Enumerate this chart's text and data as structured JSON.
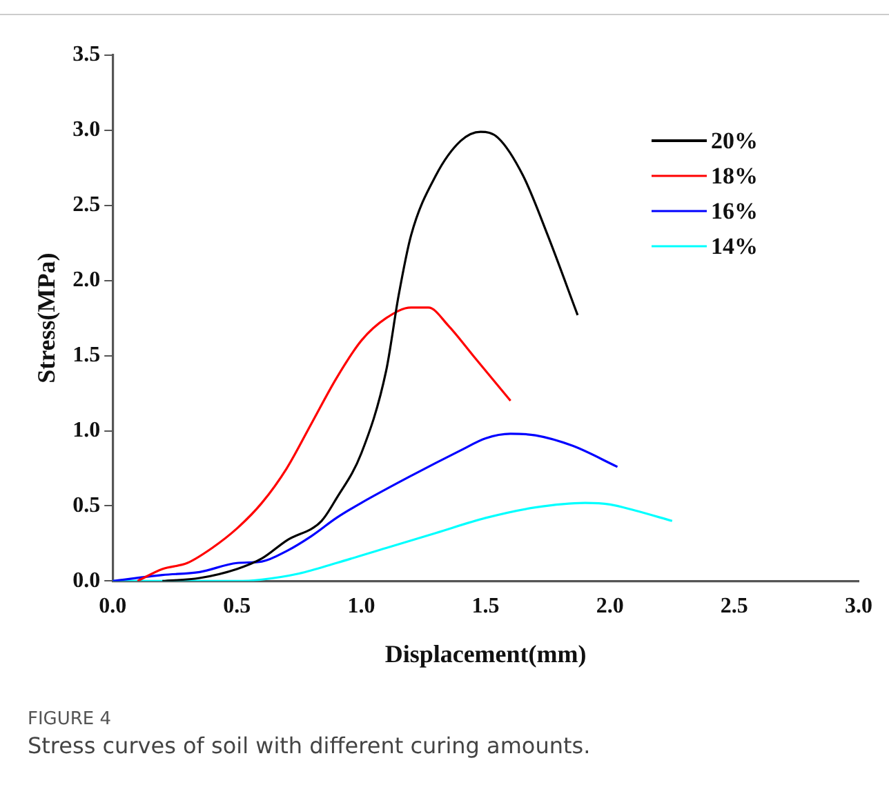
{
  "chart_data": {
    "type": "line",
    "xlabel": "Displacement(mm)",
    "ylabel": "Stress(MPa)",
    "xlim": [
      0,
      3
    ],
    "xticks": [
      {
        "value": 0,
        "label": "0.0"
      },
      {
        "value": 0.5,
        "label": "0.5"
      },
      {
        "value": 1,
        "label": "1.0"
      },
      {
        "value": 1.5,
        "label": "1.5"
      },
      {
        "value": 2,
        "label": "2.0"
      },
      {
        "value": 2.5,
        "label": "2.5"
      },
      {
        "value": 3,
        "label": "3.0"
      }
    ],
    "ylim": [
      0,
      3.5
    ],
    "yticks": [
      {
        "value": 0,
        "label": "0.0"
      },
      {
        "value": 0.5,
        "label": "0.5"
      },
      {
        "value": 1,
        "label": "1.0"
      },
      {
        "value": 1.5,
        "label": "1.5"
      },
      {
        "value": 2,
        "label": "2.0"
      },
      {
        "value": 2.5,
        "label": "2.5"
      },
      {
        "value": 3,
        "label": "3.0"
      },
      {
        "value": 3.5,
        "label": "3.5"
      }
    ],
    "grid": false,
    "legend": "top right",
    "marker": "none",
    "line_style": "solid",
    "annotations": [
      "FIGURE 4",
      "Stress curves of soil with different curing amounts."
    ],
    "series": [
      {
        "name": "20%",
        "color": "#000000",
        "x": [
          0.2,
          0.35,
          0.5,
          0.6,
          0.7,
          0.84,
          0.9,
          1.0,
          1.1,
          1.15,
          1.2,
          1.3,
          1.4,
          1.48,
          1.55,
          1.65,
          1.75,
          1.87
        ],
        "values": [
          0,
          0.02,
          0.08,
          0.15,
          0.27,
          0.4,
          0.55,
          0.85,
          1.4,
          1.9,
          2.3,
          2.7,
          2.93,
          2.99,
          2.95,
          2.7,
          2.3,
          1.77
        ]
      },
      {
        "name": "18%",
        "color": "#ff0000",
        "x": [
          0.1,
          0.2,
          0.3,
          0.4,
          0.5,
          0.6,
          0.7,
          0.8,
          0.9,
          1.0,
          1.1,
          1.2,
          1.27,
          1.35,
          1.45,
          1.6
        ],
        "values": [
          0,
          0.08,
          0.12,
          0.22,
          0.35,
          0.52,
          0.75,
          1.05,
          1.35,
          1.6,
          1.75,
          1.82,
          1.82,
          1.7,
          1.5,
          1.2
        ]
      },
      {
        "name": "16%",
        "color": "#0000ff",
        "x": [
          0,
          0.2,
          0.35,
          0.5,
          0.6,
          0.7,
          0.8,
          0.9,
          1.0,
          1.2,
          1.4,
          1.5,
          1.6,
          1.7,
          1.85,
          2.03
        ],
        "values": [
          0,
          0.04,
          0.06,
          0.12,
          0.13,
          0.2,
          0.3,
          0.42,
          0.52,
          0.7,
          0.87,
          0.95,
          0.98,
          0.97,
          0.9,
          0.76
        ]
      },
      {
        "name": "14%",
        "color": "#00ffff",
        "x": [
          0,
          0.5,
          0.6,
          0.75,
          0.9,
          1.1,
          1.3,
          1.5,
          1.7,
          1.9,
          2.0,
          2.1,
          2.25
        ],
        "values": [
          0,
          0,
          0.01,
          0.05,
          0.12,
          0.22,
          0.32,
          0.42,
          0.49,
          0.52,
          0.51,
          0.47,
          0.4
        ]
      }
    ]
  }
}
